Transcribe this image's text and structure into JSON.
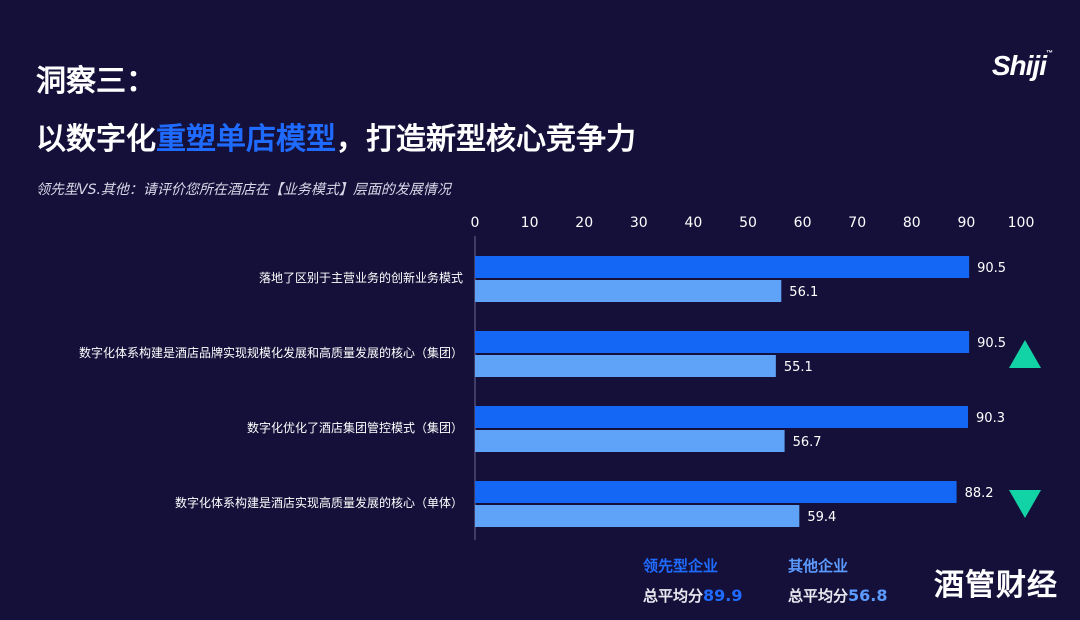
{
  "header": {
    "title_line1": "洞察三：",
    "title_line2_prefix": "以数字化",
    "title_line2_highlight": "重塑单店模型",
    "title_line2_suffix": "，打造新型核心竞争力",
    "subtitle": "领先型VS.其他：请评价您所在酒店在【业务模式】层面的发展情况",
    "logo": "Shiji"
  },
  "legend": {
    "leading_label": "领先型企业",
    "other_label": "其他企业",
    "avg_prefix": "总平均分",
    "leading_avg": "89.9",
    "other_avg": "56.8"
  },
  "watermark": "酒管财经",
  "colors": {
    "background": "#15103a",
    "leading": "#1466f5",
    "other": "#5ea3f7",
    "highlight_text": "#1f6bff",
    "arrow": "#12d3a6"
  },
  "chart_data": {
    "type": "bar",
    "orientation": "horizontal",
    "categories": [
      "落地了区别于主营业务的创新业务模式",
      "数字化体系构建是酒店品牌实现规模化发展和高质量发展的核心（集团）",
      "数字化优化了酒店集团管控模式（集团）",
      "数字化体系构建是酒店实现高质量发展的核心（单体）"
    ],
    "series": [
      {
        "name": "领先型企业",
        "values": [
          90.5,
          90.5,
          90.3,
          88.2
        ]
      },
      {
        "name": "其他企业",
        "values": [
          56.1,
          55.1,
          56.7,
          59.4
        ]
      }
    ],
    "xticks": [
      0,
      10,
      20,
      30,
      40,
      50,
      60,
      70,
      80,
      90,
      100
    ],
    "xlim": [
      0,
      100
    ],
    "axis_position": "top",
    "markers": [
      {
        "category_index": 1,
        "type": "triangle-up"
      },
      {
        "category_index": 3,
        "type": "triangle-down"
      }
    ]
  }
}
